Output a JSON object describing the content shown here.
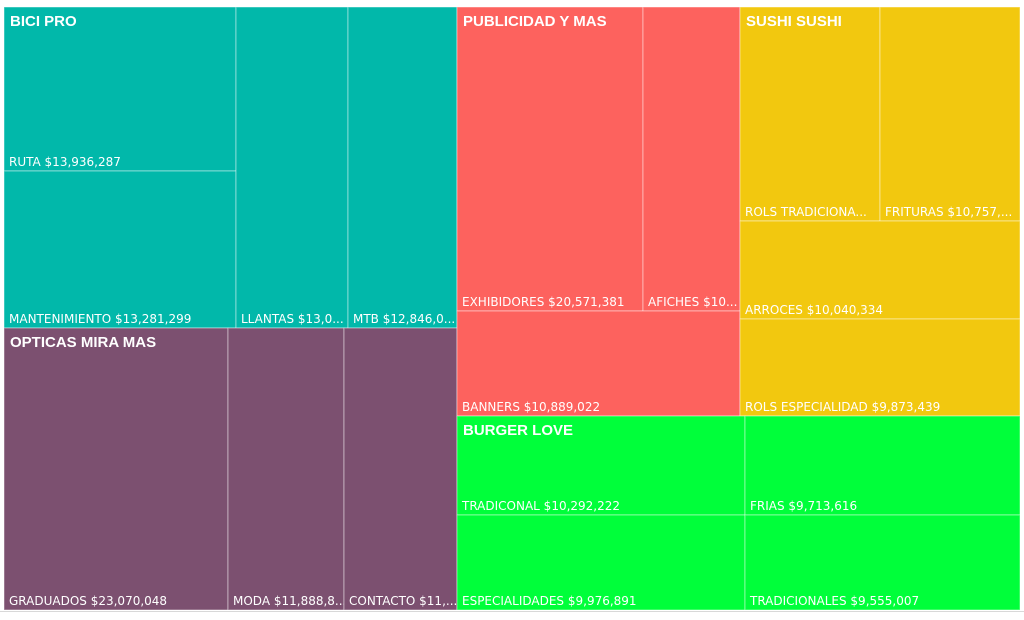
{
  "chart_data": {
    "type": "treemap",
    "groups": [
      {
        "name": "BICI PRO",
        "color": "#01B8AA",
        "items": [
          {
            "label": "RUTA $13,936,287",
            "value": 13936287
          },
          {
            "label": "MANTENIMIENTO $13,281,299",
            "value": 13281299
          },
          {
            "label": "LLANTAS $13,0...",
            "value": 13000000
          },
          {
            "label": "MTB $12,846,0...",
            "value": 12846000
          }
        ]
      },
      {
        "name": "OPTICAS MIRA MAS",
        "color": "#7C5070",
        "items": [
          {
            "label": "GRADUADOS $23,070,048",
            "value": 23070048
          },
          {
            "label": "MODA $11,888,8...",
            "value": 11888800
          },
          {
            "label": "CONTACTO $11,...",
            "value": 11500000
          }
        ]
      },
      {
        "name": "PUBLICIDAD Y MAS",
        "color": "#FD625E",
        "items": [
          {
            "label": "EXHIBIDORES $20,571,381",
            "value": 20571381
          },
          {
            "label": "AFICHES $10...",
            "value": 10300000
          },
          {
            "label": "BANNERS $10,889,022",
            "value": 10889022
          }
        ]
      },
      {
        "name": "SUSHI SUSHI",
        "color": "#F2C80F",
        "items": [
          {
            "label": "ROLS TRADICIONA...",
            "value": 10600000
          },
          {
            "label": "FRITURAS $10,757,...",
            "value": 10757000
          },
          {
            "label": "ARROCES $10,040,334",
            "value": 10040334
          },
          {
            "label": "ROLS ESPECIALIDAD $9,873,439",
            "value": 9873439
          }
        ]
      },
      {
        "name": "BURGER LOVE",
        "color": "#00FF3A",
        "items": [
          {
            "label": "TRADICONAL $10,292,222",
            "value": 10292222
          },
          {
            "label": "ESPECIALIDADES $9,976,891",
            "value": 9976891
          },
          {
            "label": "FRIAS $9,713,616",
            "value": 9713616
          },
          {
            "label": "TRADICIONALES $9,555,007",
            "value": 9555007
          }
        ]
      }
    ]
  }
}
